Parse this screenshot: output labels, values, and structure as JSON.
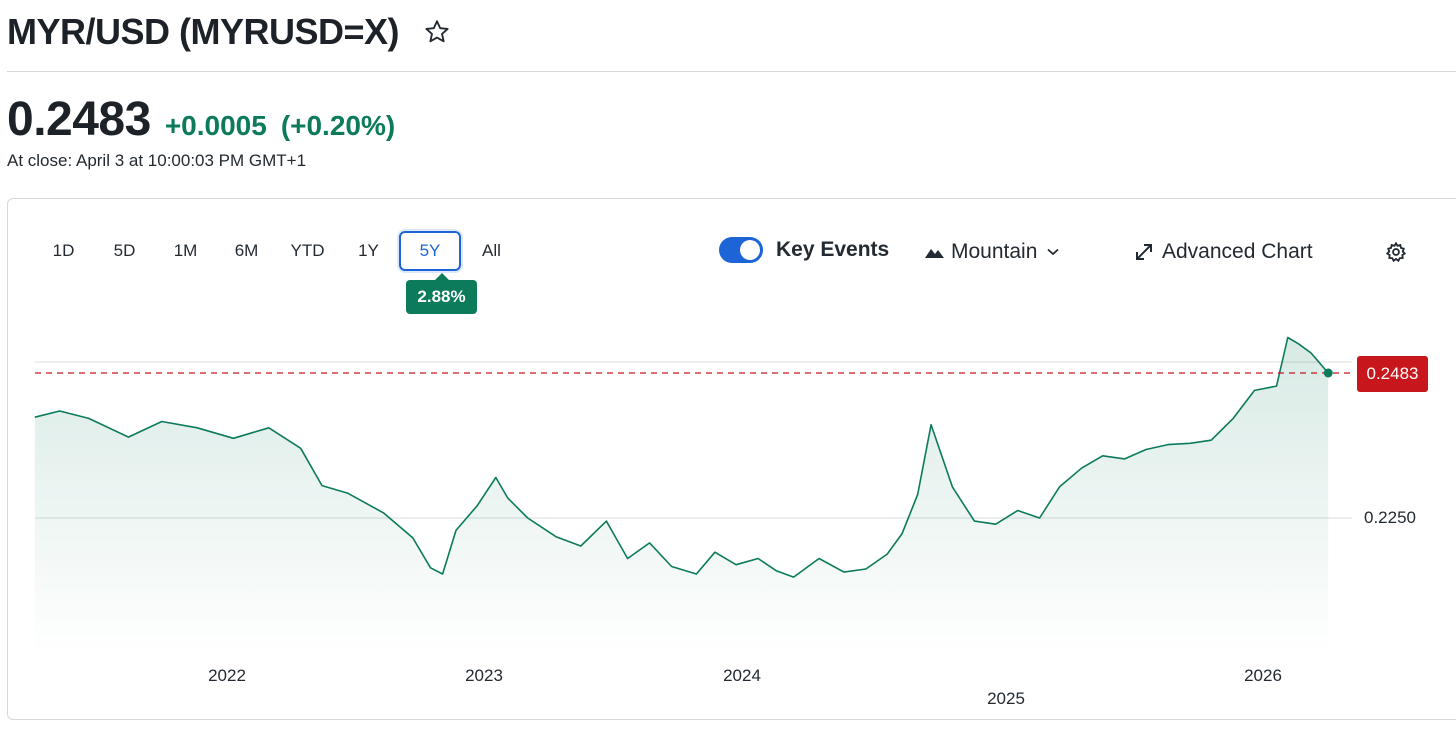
{
  "header": {
    "title": "MYR/USD (MYRUSD=X)",
    "star_icon": "star-outline-icon"
  },
  "quote": {
    "price": "0.2483",
    "change": "+0.0005",
    "change_pct": "(+0.20%)",
    "close_note": "At close: April 3 at 10:00:03 PM GMT+1",
    "up_color": "#0b7b5b"
  },
  "ranges": {
    "items": [
      "1D",
      "5D",
      "1M",
      "6M",
      "YTD",
      "1Y",
      "5Y",
      "All"
    ],
    "active": "5Y",
    "active_return": "2.88%"
  },
  "controls": {
    "key_events_label": "Key Events",
    "key_events_on": true,
    "chart_type_label": "Mountain",
    "advanced_label": "Advanced Chart",
    "icons": [
      "mountain-icon",
      "chevron-down-icon",
      "expand-arrows-icon",
      "gear-icon"
    ]
  },
  "chart_data": {
    "type": "area",
    "xlabel": "",
    "ylabel": "",
    "x_tick_labels": [
      "2022",
      "2023",
      "2024",
      "2025",
      "2026"
    ],
    "y_tick_labels": [
      "0.2250"
    ],
    "reference_line": {
      "value": 0.2483,
      "label": "0.2483",
      "style": "dashed",
      "color": "#c8161d"
    },
    "line_color": "#0b7b5b",
    "x": [
      "2021-04-05",
      "2021-05-10",
      "2021-06-20",
      "2021-08-15",
      "2021-10-01",
      "2021-11-20",
      "2022-01-10",
      "2022-03-01",
      "2022-04-15",
      "2022-05-15",
      "2022-06-20",
      "2022-08-10",
      "2022-09-20",
      "2022-10-15",
      "2022-11-01",
      "2022-11-20",
      "2022-12-20",
      "2023-01-15",
      "2023-02-01",
      "2023-03-01",
      "2023-04-10",
      "2023-05-15",
      "2023-06-20",
      "2023-07-20",
      "2023-08-20",
      "2023-09-20",
      "2023-10-25",
      "2023-11-20",
      "2023-12-20",
      "2024-01-20",
      "2024-02-15",
      "2024-03-10",
      "2024-04-15",
      "2024-05-20",
      "2024-06-20",
      "2024-07-20",
      "2024-08-10",
      "2024-09-01",
      "2024-09-20",
      "2024-10-20",
      "2024-11-20",
      "2024-12-20",
      "2025-01-20",
      "2025-02-20",
      "2025-03-20",
      "2025-04-20",
      "2025-05-20",
      "2025-06-20",
      "2025-07-20",
      "2025-08-20",
      "2025-09-20",
      "2025-10-20",
      "2025-11-20",
      "2025-12-20",
      "2026-01-20",
      "2026-02-05",
      "2026-02-20",
      "2026-03-10",
      "2026-04-03"
    ],
    "values": [
      0.2412,
      0.2422,
      0.241,
      0.238,
      0.2405,
      0.2395,
      0.2378,
      0.2395,
      0.2362,
      0.2302,
      0.229,
      0.2258,
      0.2218,
      0.217,
      0.216,
      0.223,
      0.227,
      0.2315,
      0.2282,
      0.225,
      0.222,
      0.2205,
      0.2245,
      0.2185,
      0.221,
      0.2172,
      0.216,
      0.2195,
      0.2175,
      0.2185,
      0.2165,
      0.2155,
      0.2185,
      0.2163,
      0.2168,
      0.2192,
      0.2225,
      0.2288,
      0.24,
      0.23,
      0.2245,
      0.224,
      0.2262,
      0.225,
      0.23,
      0.233,
      0.235,
      0.2345,
      0.236,
      0.2368,
      0.237,
      0.2375,
      0.241,
      0.2455,
      0.2462,
      0.254,
      0.253,
      0.2515,
      0.2483
    ]
  }
}
